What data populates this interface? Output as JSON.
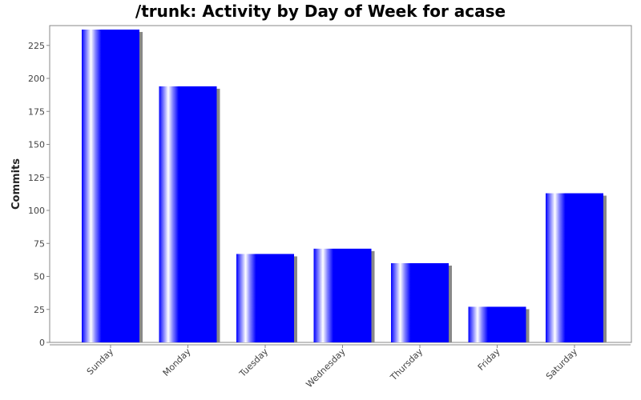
{
  "chart_data": {
    "type": "bar",
    "title": "/trunk: Activity by Day of Week for acase",
    "xlabel": "",
    "ylabel": "Commits",
    "categories": [
      "Sunday",
      "Monday",
      "Tuesday",
      "Wednesday",
      "Thursday",
      "Friday",
      "Saturday"
    ],
    "values": [
      237,
      194,
      67,
      71,
      60,
      27,
      113
    ],
    "ylim": [
      0,
      240
    ],
    "yticks": [
      "0",
      "25",
      "50",
      "75",
      "100",
      "125",
      "150",
      "175",
      "200",
      "225"
    ],
    "grid": false,
    "legend": "none",
    "colors": {
      "bar": "#0000ff",
      "highlight": "#ffffff",
      "shadow": "#888888",
      "plot_background": "#ffffff",
      "plot_border": "#888888",
      "axis": "#888888"
    }
  }
}
